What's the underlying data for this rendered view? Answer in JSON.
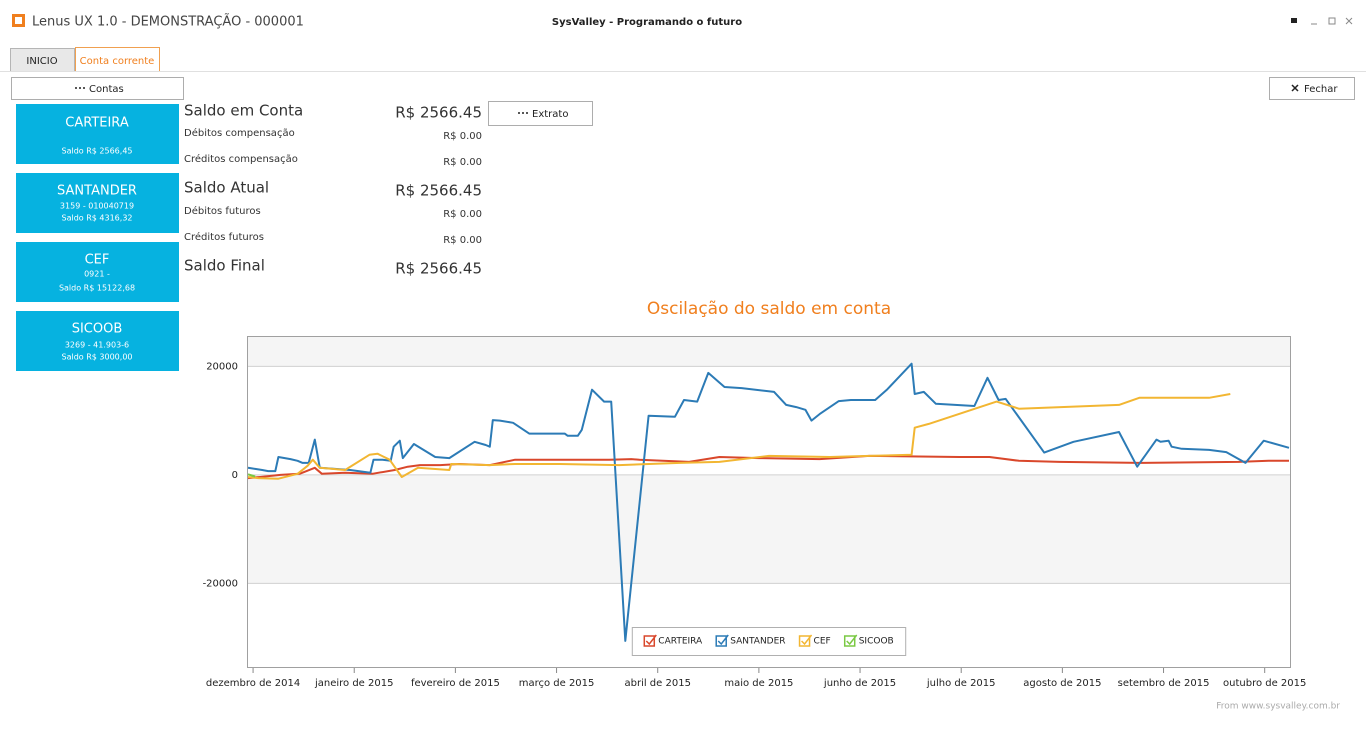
{
  "window": {
    "title": "Lenus UX 1.0 - DEMONSTRAÇÃO - 000001",
    "caption": "SysValley - Programando o futuro"
  },
  "tabs": [
    "INICIO",
    "Conta corrente"
  ],
  "buttons": {
    "contas": "Contas",
    "fechar": "Fechar",
    "extrato": "Extrato"
  },
  "accounts": [
    {
      "name": "CARTEIRA",
      "lines": [
        "Saldo R$ 2566,45"
      ]
    },
    {
      "name": "SANTANDER",
      "lines": [
        "3159 - 010040719",
        "Saldo R$ 4316,32"
      ]
    },
    {
      "name": "CEF",
      "lines": [
        "0921 -",
        "Saldo R$ 15122,68"
      ]
    },
    {
      "name": "SICOOB",
      "lines": [
        "3269 - 41.903-6",
        "Saldo R$ 3000,00"
      ]
    }
  ],
  "summary": [
    {
      "label": "Saldo em Conta",
      "value": "R$ 2566.45"
    },
    {
      "label": "Débitos compensação",
      "value": "R$ 0.00"
    },
    {
      "label": "Créditos compensação",
      "value": "R$ 0.00"
    },
    {
      "label": "Saldo Atual",
      "value": "R$ 2566.45"
    },
    {
      "label": "Débitos futuros",
      "value": "R$ 0.00"
    },
    {
      "label": "Créditos futuros",
      "value": "R$ 0.00"
    },
    {
      "label": "Saldo Final",
      "value": "R$ 2566.45"
    }
  ],
  "footer": "From www.sysvalley.com.br",
  "chart_data": {
    "type": "line",
    "title": "Oscilação do saldo em conta",
    "xlim": [
      -0.06,
      10.26
    ],
    "xticks": [
      {
        "value": 0,
        "label": "dezembro de 2014"
      },
      {
        "value": 1,
        "label": "janeiro de 2015"
      },
      {
        "value": 2,
        "label": "fevereiro de 2015"
      },
      {
        "value": 3,
        "label": "março de 2015"
      },
      {
        "value": 4,
        "label": "abril de 2015"
      },
      {
        "value": 5,
        "label": "maio de 2015"
      },
      {
        "value": 6,
        "label": "junho de 2015"
      },
      {
        "value": 7,
        "label": "julho de 2015"
      },
      {
        "value": 8,
        "label": "agosto de 2015"
      },
      {
        "value": 9,
        "label": "setembro de 2015"
      },
      {
        "value": 10,
        "label": "outubro de 2015"
      }
    ],
    "ylim": [
      -35600,
      25600
    ],
    "yticks": [
      -20000,
      0,
      20000
    ],
    "grid": true,
    "legend": "bottom",
    "series": [
      {
        "name": "CARTEIRA",
        "color": "#d9472b",
        "x": [
          -0.05,
          0.07,
          0.27,
          0.46,
          0.61,
          0.68,
          0.91,
          1.18,
          1.4,
          1.53,
          1.65,
          1.85,
          2.04,
          2.34,
          2.59,
          3.03,
          3.52,
          3.74,
          3.82,
          4.31,
          4.61,
          5.0,
          5.6,
          6.09,
          6.98,
          7.28,
          7.57,
          7.97,
          8.76,
          9.74,
          10.04,
          10.24
        ],
        "values": [
          -600,
          -400,
          0,
          200,
          1300,
          200,
          400,
          200,
          900,
          1500,
          1800,
          1800,
          2000,
          1800,
          2800,
          2800,
          2800,
          2900,
          2800,
          2400,
          3300,
          3100,
          2900,
          3500,
          3300,
          3300,
          2600,
          2400,
          2200,
          2400,
          2600,
          2600
        ]
      },
      {
        "name": "SANTANDER",
        "color": "#2c7bb6",
        "x": [
          -0.05,
          0.02,
          0.09,
          0.15,
          0.22,
          0.25,
          0.37,
          0.44,
          0.49,
          0.55,
          0.61,
          0.66,
          0.81,
          0.96,
          1.16,
          1.19,
          1.28,
          1.36,
          1.39,
          1.45,
          1.48,
          1.59,
          1.8,
          1.94,
          2.19,
          2.3,
          2.34,
          2.37,
          2.44,
          2.57,
          2.73,
          3.01,
          3.08,
          3.11,
          3.21,
          3.25,
          3.35,
          3.47,
          3.54,
          3.68,
          3.91,
          4.17,
          4.26,
          4.39,
          4.5,
          4.66,
          4.83,
          5.15,
          5.27,
          5.37,
          5.46,
          5.52,
          5.6,
          5.79,
          5.91,
          6.15,
          6.27,
          6.51,
          6.54,
          6.63,
          6.75,
          7.13,
          7.26,
          7.37,
          7.44,
          7.82,
          8.11,
          8.56,
          8.74,
          8.93,
          8.97,
          9.05,
          9.08,
          9.18,
          9.45,
          9.62,
          9.81,
          9.99,
          10.24
        ],
        "values": [
          1300,
          1100,
          900,
          700,
          700,
          3300,
          2900,
          2600,
          2200,
          2200,
          6500,
          1300,
          1100,
          900,
          400,
          2800,
          2800,
          2600,
          5200,
          6300,
          3100,
          5700,
          3300,
          3100,
          6100,
          5500,
          5200,
          10100,
          10000,
          9600,
          7600,
          7600,
          7600,
          7200,
          7200,
          8300,
          15700,
          13500,
          13500,
          -30600,
          10900,
          10700,
          13800,
          13500,
          18800,
          16200,
          16000,
          15300,
          12900,
          12500,
          12000,
          10000,
          11200,
          13600,
          13800,
          13800,
          15800,
          20500,
          14900,
          15300,
          13100,
          12700,
          17900,
          13800,
          14000,
          4100,
          6100,
          7900,
          1500,
          6500,
          6100,
          6300,
          5200,
          4800,
          4600,
          4200,
          2200,
          6300,
          5000
        ]
      },
      {
        "name": "CEF",
        "color": "#f2b632",
        "x": [
          -0.05,
          0.05,
          0.25,
          0.44,
          0.54,
          0.59,
          0.66,
          0.91,
          1.15,
          1.23,
          1.35,
          1.47,
          1.63,
          1.94,
          1.96,
          2.34,
          2.59,
          3.03,
          3.62,
          4.22,
          4.61,
          5.1,
          5.7,
          6.09,
          6.51,
          6.54,
          6.68,
          7.35,
          7.57,
          8.56,
          8.76,
          9.45,
          9.66
        ],
        "values": [
          -400,
          -600,
          -700,
          200,
          1700,
          2800,
          1300,
          900,
          3700,
          3900,
          2800,
          -400,
          1300,
          900,
          2000,
          1800,
          2000,
          2000,
          1800,
          2200,
          2400,
          3500,
          3300,
          3500,
          3700,
          8700,
          9400,
          13500,
          12200,
          12900,
          14200,
          14200,
          14900
        ]
      },
      {
        "name": "SICOOB",
        "color": "#7ac943",
        "x": [
          -0.05,
          0.02
        ],
        "values": [
          100,
          -300
        ]
      }
    ]
  }
}
